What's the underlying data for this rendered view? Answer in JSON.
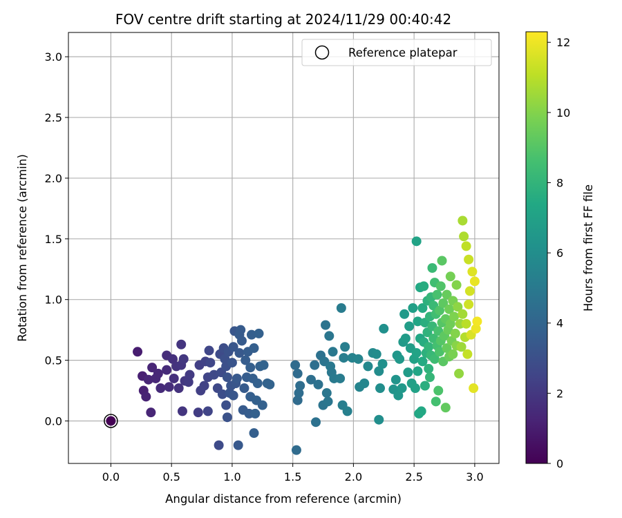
{
  "chart_data": {
    "type": "scatter",
    "title": "FOV centre drift starting at 2024/11/29 00:40:42",
    "xlabel": "Angular distance from reference (arcmin)",
    "ylabel": "Rotation from reference (arcmin)",
    "xlim": [
      -0.35,
      3.2
    ],
    "ylim": [
      -0.35,
      3.2
    ],
    "xticks": [
      "0.0",
      "0.5",
      "1.0",
      "1.5",
      "2.0",
      "2.5",
      "3.0"
    ],
    "yticks": [
      "0.0",
      "0.5",
      "1.0",
      "1.5",
      "2.0",
      "2.5",
      "3.0"
    ],
    "grid": true,
    "legend": {
      "position": "top-right",
      "label": "Reference platepar"
    },
    "reference_point": {
      "x": 0.0,
      "y": 0.0
    },
    "colorbar": {
      "label": "Hours from first FF file",
      "range": [
        0,
        12.3
      ],
      "ticks": [
        "0",
        "2",
        "4",
        "6",
        "8",
        "10",
        "12"
      ],
      "colormap": "viridis"
    },
    "points": [
      [
        0.0,
        0.0,
        0.0
      ],
      [
        0.22,
        0.57,
        1.0
      ],
      [
        0.26,
        0.37,
        1.1
      ],
      [
        0.27,
        0.25,
        1.1
      ],
      [
        0.29,
        0.2,
        1.2
      ],
      [
        0.31,
        0.34,
        1.3
      ],
      [
        0.33,
        0.07,
        1.3
      ],
      [
        0.34,
        0.44,
        1.3
      ],
      [
        0.37,
        0.35,
        1.4
      ],
      [
        0.39,
        0.39,
        1.4
      ],
      [
        0.41,
        0.27,
        1.5
      ],
      [
        0.46,
        0.42,
        1.5
      ],
      [
        0.46,
        0.54,
        1.6
      ],
      [
        0.48,
        0.28,
        1.6
      ],
      [
        0.51,
        0.51,
        1.7
      ],
      [
        0.52,
        0.35,
        1.7
      ],
      [
        0.54,
        0.45,
        1.8
      ],
      [
        0.56,
        0.27,
        1.8
      ],
      [
        0.58,
        0.46,
        1.9
      ],
      [
        0.58,
        0.63,
        1.9
      ],
      [
        0.59,
        0.08,
        1.9
      ],
      [
        0.6,
        0.51,
        2.0
      ],
      [
        0.61,
        0.33,
        2.0
      ],
      [
        0.64,
        0.32,
        2.1
      ],
      [
        0.65,
        0.38,
        2.1
      ],
      [
        0.72,
        0.07,
        2.2
      ],
      [
        0.73,
        0.46,
        2.3
      ],
      [
        0.74,
        0.25,
        2.3
      ],
      [
        0.77,
        0.29,
        2.4
      ],
      [
        0.78,
        0.49,
        2.4
      ],
      [
        0.8,
        0.08,
        2.5
      ],
      [
        0.8,
        0.36,
        2.5
      ],
      [
        0.81,
        0.58,
        2.6
      ],
      [
        0.82,
        0.48,
        2.6
      ],
      [
        0.85,
        0.38,
        2.7
      ],
      [
        0.88,
        0.27,
        2.7
      ],
      [
        0.89,
        -0.2,
        2.8
      ],
      [
        0.9,
        0.55,
        2.8
      ],
      [
        0.91,
        0.4,
        2.8
      ],
      [
        0.92,
        0.22,
        2.9
      ],
      [
        0.93,
        0.6,
        2.9
      ],
      [
        0.94,
        0.51,
        3.0
      ],
      [
        0.95,
        0.13,
        3.0
      ],
      [
        0.95,
        0.45,
        3.0
      ],
      [
        0.96,
        0.36,
        3.1
      ],
      [
        0.96,
        0.03,
        3.1
      ],
      [
        0.97,
        0.57,
        3.1
      ],
      [
        0.98,
        0.23,
        3.2
      ],
      [
        0.99,
        0.29,
        3.2
      ],
      [
        1.0,
        0.48,
        3.2
      ],
      [
        1.01,
        0.21,
        3.3
      ],
      [
        1.01,
        0.61,
        3.3
      ],
      [
        1.02,
        0.74,
        3.3
      ],
      [
        1.03,
        0.31,
        3.3
      ],
      [
        1.04,
        0.35,
        3.4
      ],
      [
        1.05,
        -0.2,
        3.4
      ],
      [
        1.06,
        0.56,
        3.4
      ],
      [
        1.06,
        0.71,
        3.5
      ],
      [
        1.07,
        0.75,
        3.5
      ],
      [
        1.08,
        0.66,
        3.5
      ],
      [
        1.09,
        0.09,
        3.5
      ],
      [
        1.1,
        0.27,
        3.5
      ],
      [
        1.11,
        0.5,
        3.6
      ],
      [
        1.12,
        0.36,
        3.6
      ],
      [
        1.13,
        0.57,
        3.6
      ],
      [
        1.14,
        0.06,
        3.6
      ],
      [
        1.15,
        0.44,
        3.7
      ],
      [
        1.15,
        0.2,
        3.7
      ],
      [
        1.16,
        0.71,
        3.7
      ],
      [
        1.17,
        0.35,
        3.7
      ],
      [
        1.18,
        -0.1,
        3.7
      ],
      [
        1.18,
        0.6,
        3.7
      ],
      [
        1.19,
        0.06,
        3.8
      ],
      [
        1.2,
        0.17,
        3.8
      ],
      [
        1.21,
        0.31,
        3.8
      ],
      [
        1.22,
        0.72,
        3.8
      ],
      [
        1.23,
        0.45,
        3.8
      ],
      [
        1.25,
        0.13,
        3.8
      ],
      [
        1.26,
        0.46,
        3.9
      ],
      [
        1.29,
        0.31,
        3.9
      ],
      [
        1.31,
        0.3,
        3.9
      ],
      [
        1.52,
        0.46,
        4.3
      ],
      [
        1.53,
        -0.24,
        4.3
      ],
      [
        1.54,
        0.17,
        4.3
      ],
      [
        1.54,
        0.39,
        4.3
      ],
      [
        1.55,
        0.23,
        4.4
      ],
      [
        1.56,
        0.29,
        4.4
      ],
      [
        1.65,
        0.34,
        4.5
      ],
      [
        1.68,
        0.46,
        4.5
      ],
      [
        1.69,
        -0.01,
        4.6
      ],
      [
        1.71,
        0.3,
        4.6
      ],
      [
        1.73,
        0.54,
        4.6
      ],
      [
        1.75,
        0.13,
        4.7
      ],
      [
        1.76,
        0.49,
        4.7
      ],
      [
        1.77,
        0.79,
        4.7
      ],
      [
        1.78,
        0.23,
        4.8
      ],
      [
        1.79,
        0.16,
        4.8
      ],
      [
        1.8,
        0.7,
        4.8
      ],
      [
        1.81,
        0.45,
        4.9
      ],
      [
        1.82,
        0.4,
        4.9
      ],
      [
        1.83,
        0.57,
        4.9
      ],
      [
        1.84,
        0.35,
        5.0
      ],
      [
        1.89,
        0.35,
        5.1
      ],
      [
        1.9,
        0.93,
        5.1
      ],
      [
        1.91,
        0.13,
        5.2
      ],
      [
        1.92,
        0.52,
        5.2
      ],
      [
        1.93,
        0.61,
        5.2
      ],
      [
        1.95,
        0.08,
        5.3
      ],
      [
        1.99,
        0.52,
        5.4
      ],
      [
        2.04,
        0.51,
        5.5
      ],
      [
        2.05,
        0.28,
        5.5
      ],
      [
        2.09,
        0.31,
        5.6
      ],
      [
        2.12,
        0.45,
        5.7
      ],
      [
        2.16,
        0.56,
        5.8
      ],
      [
        2.19,
        0.55,
        5.9
      ],
      [
        2.21,
        0.41,
        5.9
      ],
      [
        2.21,
        0.01,
        6.0
      ],
      [
        2.22,
        0.27,
        6.0
      ],
      [
        2.24,
        0.47,
        6.1
      ],
      [
        2.25,
        0.76,
        6.1
      ],
      [
        2.33,
        0.26,
        6.3
      ],
      [
        2.35,
        0.34,
        6.3
      ],
      [
        2.36,
        0.54,
        6.4
      ],
      [
        2.37,
        0.21,
        6.4
      ],
      [
        2.38,
        0.51,
        6.5
      ],
      [
        2.4,
        0.27,
        6.5
      ],
      [
        2.41,
        0.65,
        6.6
      ],
      [
        2.42,
        0.88,
        6.6
      ],
      [
        2.43,
        0.68,
        6.7
      ],
      [
        2.45,
        0.4,
        6.7
      ],
      [
        2.46,
        0.78,
        6.8
      ],
      [
        2.47,
        0.6,
        6.8
      ],
      [
        2.48,
        0.31,
        6.9
      ],
      [
        2.49,
        0.93,
        6.9
      ],
      [
        2.5,
        0.51,
        7.0
      ],
      [
        2.51,
        0.27,
        7.0
      ],
      [
        2.52,
        0.56,
        7.1
      ],
      [
        2.52,
        1.48,
        7.1
      ],
      [
        2.53,
        0.82,
        7.2
      ],
      [
        2.53,
        0.41,
        7.2
      ],
      [
        2.54,
        0.06,
        7.3
      ],
      [
        2.55,
        0.68,
        7.3
      ],
      [
        2.55,
        1.1,
        7.4
      ],
      [
        2.56,
        0.08,
        7.4
      ],
      [
        2.57,
        0.93,
        7.5
      ],
      [
        2.57,
        0.49,
        7.5
      ],
      [
        2.58,
        0.65,
        7.6
      ],
      [
        2.58,
        1.11,
        7.6
      ],
      [
        2.59,
        0.29,
        7.7
      ],
      [
        2.59,
        0.81,
        7.7
      ],
      [
        2.6,
        0.56,
        7.8
      ],
      [
        2.61,
        0.99,
        7.8
      ],
      [
        2.61,
        0.73,
        7.9
      ],
      [
        2.62,
        0.43,
        7.9
      ],
      [
        2.62,
        0.61,
        8.0
      ],
      [
        2.63,
        0.86,
        8.0
      ],
      [
        2.63,
        0.36,
        8.1
      ],
      [
        2.64,
        1.02,
        8.1
      ],
      [
        2.64,
        0.54,
        8.2
      ],
      [
        2.65,
        0.78,
        8.2
      ],
      [
        2.65,
        1.26,
        8.3
      ],
      [
        2.66,
        0.95,
        8.3
      ],
      [
        2.66,
        0.68,
        8.4
      ],
      [
        2.67,
        0.51,
        8.4
      ],
      [
        2.67,
        1.14,
        8.5
      ],
      [
        2.68,
        0.88,
        8.5
      ],
      [
        2.68,
        0.16,
        8.6
      ],
      [
        2.69,
        0.62,
        8.6
      ],
      [
        2.69,
        1.04,
        8.7
      ],
      [
        2.7,
        0.74,
        8.7
      ],
      [
        2.7,
        0.25,
        8.8
      ],
      [
        2.71,
        0.57,
        8.8
      ],
      [
        2.71,
        0.91,
        8.9
      ],
      [
        2.72,
        1.11,
        8.9
      ],
      [
        2.72,
        0.66,
        9.0
      ],
      [
        2.73,
        0.81,
        9.0
      ],
      [
        2.73,
        1.32,
        9.1
      ],
      [
        2.74,
        0.49,
        9.1
      ],
      [
        2.74,
        0.97,
        9.2
      ],
      [
        2.75,
        0.7,
        9.2
      ],
      [
        2.76,
        0.84,
        9.3
      ],
      [
        2.76,
        0.11,
        9.3
      ],
      [
        2.77,
        0.6,
        9.4
      ],
      [
        2.77,
        1.04,
        9.4
      ],
      [
        2.78,
        0.75,
        9.5
      ],
      [
        2.79,
        0.53,
        9.5
      ],
      [
        2.79,
        0.92,
        9.6
      ],
      [
        2.8,
        0.8,
        9.6
      ],
      [
        2.8,
        1.19,
        9.7
      ],
      [
        2.81,
        0.66,
        9.7
      ],
      [
        2.82,
        0.99,
        9.8
      ],
      [
        2.82,
        0.55,
        9.8
      ],
      [
        2.83,
        0.86,
        9.9
      ],
      [
        2.84,
        0.72,
        10.0
      ],
      [
        2.85,
        1.12,
        10.0
      ],
      [
        2.85,
        0.62,
        10.1
      ],
      [
        2.86,
        0.94,
        10.2
      ],
      [
        2.87,
        0.39,
        10.3
      ],
      [
        2.88,
        0.8,
        10.4
      ],
      [
        2.89,
        0.61,
        10.5
      ],
      [
        2.9,
        0.88,
        10.6
      ],
      [
        2.9,
        1.65,
        10.7
      ],
      [
        2.91,
        1.52,
        10.8
      ],
      [
        2.92,
        0.69,
        10.9
      ],
      [
        2.93,
        0.8,
        11.0
      ],
      [
        2.93,
        1.44,
        11.1
      ],
      [
        2.94,
        0.55,
        11.2
      ],
      [
        2.95,
        1.33,
        11.3
      ],
      [
        2.95,
        0.96,
        11.4
      ],
      [
        2.96,
        1.07,
        11.5
      ],
      [
        2.97,
        0.71,
        11.6
      ],
      [
        2.98,
        1.23,
        11.7
      ],
      [
        2.99,
        0.27,
        11.8
      ],
      [
        3.0,
        1.15,
        11.9
      ],
      [
        3.01,
        0.76,
        12.0
      ],
      [
        3.02,
        0.82,
        12.1
      ]
    ]
  }
}
